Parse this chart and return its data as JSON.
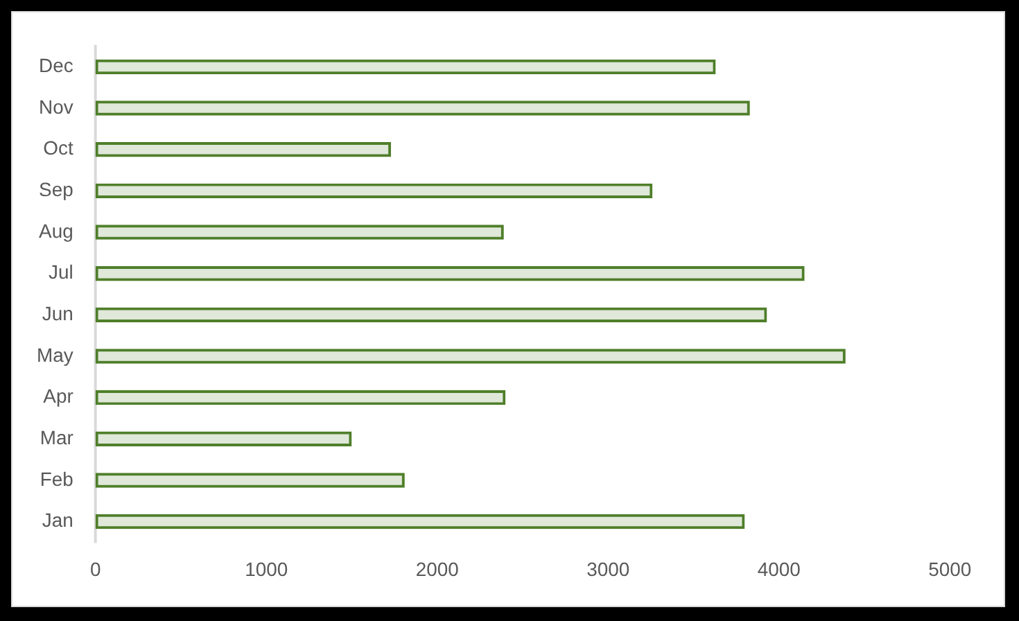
{
  "chart_data": {
    "type": "bar",
    "orientation": "horizontal",
    "categories": [
      "Dec",
      "Nov",
      "Oct",
      "Sep",
      "Aug",
      "Jul",
      "Jun",
      "May",
      "Apr",
      "Mar",
      "Feb",
      "Jan"
    ],
    "values": [
      3630,
      3830,
      1730,
      3260,
      2390,
      4150,
      3930,
      4390,
      2400,
      1500,
      1810,
      3800
    ],
    "color": "#4f7f2a",
    "xlim": [
      0,
      5000
    ],
    "xticks": [
      0,
      1000,
      2000,
      3000,
      4000,
      5000
    ]
  }
}
